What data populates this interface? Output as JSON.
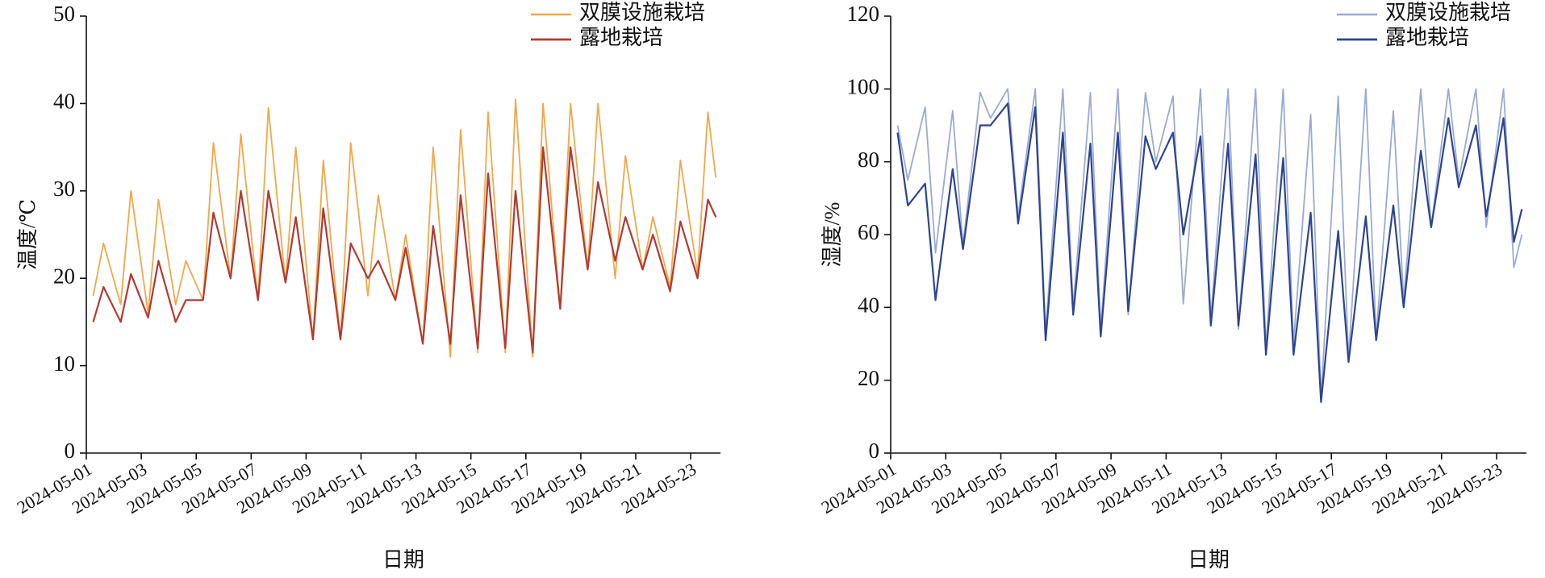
{
  "chart_data": [
    {
      "type": "line",
      "xlabel": "日期",
      "ylabel": "温度/℃",
      "legend": "upper right",
      "x": [
        "2024-05-01 06:00",
        "2024-05-01 15:00",
        "2024-05-02 06:00",
        "2024-05-02 15:00",
        "2024-05-03 06:00",
        "2024-05-03 15:00",
        "2024-05-04 06:00",
        "2024-05-04 15:00",
        "2024-05-05 06:00",
        "2024-05-05 15:00",
        "2024-05-06 06:00",
        "2024-05-06 15:00",
        "2024-05-07 06:00",
        "2024-05-07 15:00",
        "2024-05-08 06:00",
        "2024-05-08 15:00",
        "2024-05-09 06:00",
        "2024-05-09 15:00",
        "2024-05-10 06:00",
        "2024-05-10 15:00",
        "2024-05-11 06:00",
        "2024-05-11 15:00",
        "2024-05-12 06:00",
        "2024-05-12 15:00",
        "2024-05-13 06:00",
        "2024-05-13 15:00",
        "2024-05-14 06:00",
        "2024-05-14 15:00",
        "2024-05-15 06:00",
        "2024-05-15 15:00",
        "2024-05-16 06:00",
        "2024-05-16 15:00",
        "2024-05-17 06:00",
        "2024-05-17 15:00",
        "2024-05-18 06:00",
        "2024-05-18 15:00",
        "2024-05-19 06:00",
        "2024-05-19 15:00",
        "2024-05-20 06:00",
        "2024-05-20 15:00",
        "2024-05-21 06:00",
        "2024-05-21 15:00",
        "2024-05-22 06:00",
        "2024-05-22 15:00",
        "2024-05-23 06:00",
        "2024-05-23 15:00",
        "2024-05-23 22:00"
      ],
      "series": [
        {
          "name": "双膜设施栽培",
          "color": "#f0a848",
          "width": 1.8,
          "values": [
            18,
            24,
            17,
            30,
            16,
            29,
            17,
            22,
            17.5,
            35.5,
            20,
            36.5,
            17.5,
            39.5,
            19.5,
            35,
            13,
            33.5,
            13,
            35.5,
            18,
            29.5,
            17.5,
            25,
            12.5,
            35,
            11,
            37,
            11.5,
            39,
            11.5,
            40.5,
            11,
            40,
            16.5,
            40,
            21,
            40,
            20,
            34,
            21,
            27,
            19,
            33.5,
            20.5,
            39,
            31.5
          ]
        },
        {
          "name": "露地栽培",
          "color": "#b23a32",
          "width": 2.2,
          "values": [
            15,
            19,
            15,
            20.5,
            15.5,
            22,
            15,
            17.5,
            17.5,
            27.5,
            20,
            30,
            17.5,
            30,
            19.5,
            27,
            13,
            28,
            13,
            24,
            20,
            22,
            17.5,
            23.5,
            12.5,
            26,
            12.5,
            29.5,
            12,
            32,
            12,
            30,
            11.5,
            35,
            16.5,
            35,
            21,
            31,
            22,
            27,
            21,
            25,
            18.5,
            26.5,
            20,
            29,
            27
          ]
        }
      ],
      "xlim": [
        "2024-05-01 00:00",
        "2024-05-24 02:00"
      ],
      "xticks": [
        "2024-05-01",
        "2024-05-03",
        "2024-05-05",
        "2024-05-07",
        "2024-05-09",
        "2024-05-11",
        "2024-05-13",
        "2024-05-15",
        "2024-05-17",
        "2024-05-19",
        "2024-05-21",
        "2024-05-23"
      ],
      "ylim": [
        0,
        50
      ],
      "yticks": [
        0,
        10,
        20,
        30,
        40,
        50
      ]
    },
    {
      "type": "line",
      "xlabel": "日期",
      "ylabel": "湿度/%",
      "legend": "upper right",
      "x": [
        "2024-05-01 06:00",
        "2024-05-01 15:00",
        "2024-05-02 06:00",
        "2024-05-02 15:00",
        "2024-05-03 06:00",
        "2024-05-03 15:00",
        "2024-05-04 06:00",
        "2024-05-04 15:00",
        "2024-05-05 06:00",
        "2024-05-05 15:00",
        "2024-05-06 06:00",
        "2024-05-06 15:00",
        "2024-05-07 06:00",
        "2024-05-07 15:00",
        "2024-05-08 06:00",
        "2024-05-08 15:00",
        "2024-05-09 06:00",
        "2024-05-09 15:00",
        "2024-05-10 06:00",
        "2024-05-10 15:00",
        "2024-05-11 06:00",
        "2024-05-11 15:00",
        "2024-05-12 06:00",
        "2024-05-12 15:00",
        "2024-05-13 06:00",
        "2024-05-13 15:00",
        "2024-05-14 06:00",
        "2024-05-14 15:00",
        "2024-05-15 06:00",
        "2024-05-15 15:00",
        "2024-05-16 06:00",
        "2024-05-16 15:00",
        "2024-05-17 06:00",
        "2024-05-17 15:00",
        "2024-05-18 06:00",
        "2024-05-18 15:00",
        "2024-05-19 06:00",
        "2024-05-19 15:00",
        "2024-05-20 06:00",
        "2024-05-20 15:00",
        "2024-05-21 06:00",
        "2024-05-21 15:00",
        "2024-05-22 06:00",
        "2024-05-22 15:00",
        "2024-05-23 06:00",
        "2024-05-23 15:00",
        "2024-05-23 22:00"
      ],
      "series": [
        {
          "name": "双膜设施栽培",
          "color": "#9aaad4",
          "width": 1.8,
          "values": [
            90,
            75,
            95,
            55,
            94,
            57,
            99,
            92,
            100,
            65,
            100,
            33,
            100,
            40,
            99,
            34,
            100,
            38,
            99,
            80,
            98,
            41,
            100,
            37,
            100,
            34,
            100,
            29,
            100,
            30,
            93,
            15,
            98,
            26,
            100,
            32,
            94,
            42,
            100,
            62,
            100,
            75,
            100,
            62,
            100,
            51,
            60
          ]
        },
        {
          "name": "露地栽培",
          "color": "#2e4490",
          "width": 2.2,
          "values": [
            88,
            68,
            74,
            42,
            78,
            56,
            90,
            90,
            96,
            63,
            95,
            31,
            88,
            38,
            85,
            32,
            88,
            39,
            87,
            78,
            88,
            60,
            87,
            35,
            85,
            35,
            82,
            27,
            81,
            27,
            66,
            14,
            61,
            25,
            65,
            31,
            68,
            40,
            83,
            62,
            92,
            73,
            90,
            65,
            92,
            58,
            67
          ]
        }
      ],
      "xlim": [
        "2024-05-01 00:00",
        "2024-05-24 02:00"
      ],
      "xticks": [
        "2024-05-01",
        "2024-05-03",
        "2024-05-05",
        "2024-05-07",
        "2024-05-09",
        "2024-05-11",
        "2024-05-13",
        "2024-05-15",
        "2024-05-17",
        "2024-05-19",
        "2024-05-21",
        "2024-05-23"
      ],
      "ylim": [
        0,
        120
      ],
      "yticks": [
        0,
        20,
        40,
        60,
        80,
        100,
        120
      ]
    }
  ]
}
